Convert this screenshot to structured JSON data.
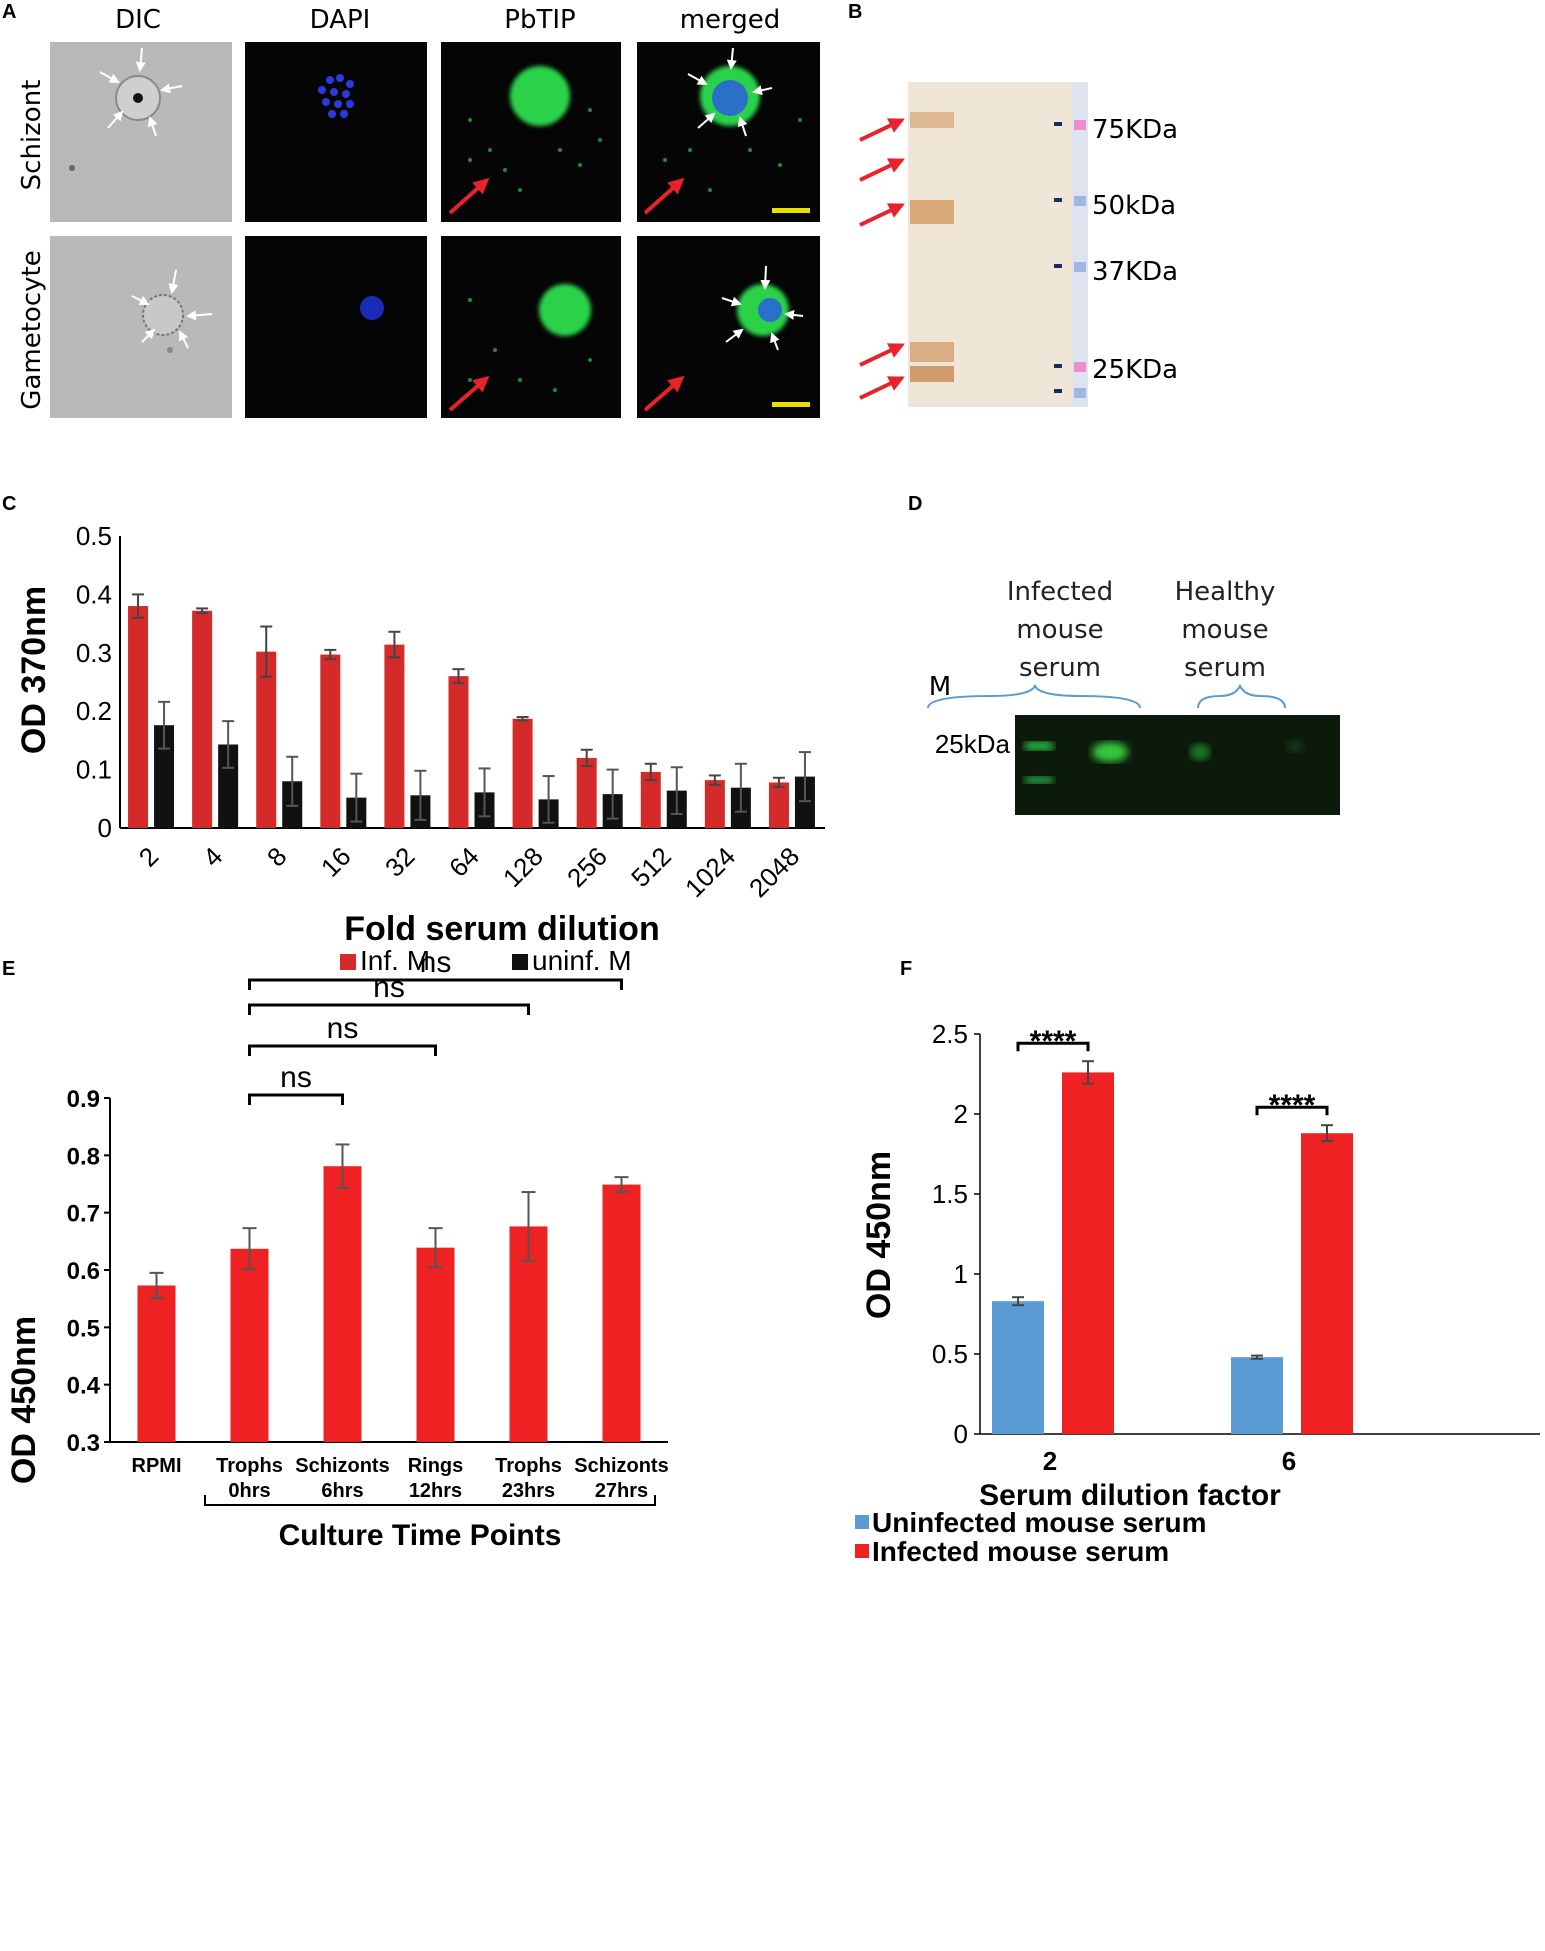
{
  "panels": {
    "A": "A",
    "B": "B",
    "C": "C",
    "D": "D",
    "E": "E",
    "F": "F"
  },
  "panelA": {
    "columns": [
      "DIC",
      "DAPI",
      "PbTIP",
      "merged"
    ],
    "rows": [
      "Schizont",
      "Gametocyte"
    ]
  },
  "panelB": {
    "markers": [
      "75KDa",
      "50kDa",
      "37KDa",
      "25KDa"
    ]
  },
  "panelD": {
    "lane_m": "M",
    "marker": "25kDa",
    "infected": [
      "Infected",
      "mouse",
      "serum"
    ],
    "healthy": [
      "Healthy",
      "mouse",
      "serum"
    ]
  },
  "chart_data": [
    {
      "type": "bar",
      "panel": "C",
      "xlabel": "Fold serum dilution",
      "ylabel": "OD 370nm",
      "ylim": [
        0,
        0.5
      ],
      "yticks": [
        "0",
        "0.1",
        "0.2",
        "0.3",
        "0.4",
        "0.5"
      ],
      "categories": [
        "2",
        "4",
        "8",
        "16",
        "32",
        "64",
        "128",
        "256",
        "512",
        "1024",
        "2048"
      ],
      "series": [
        {
          "name": "Inf. M",
          "color": "#d42a2a",
          "values": [
            0.38,
            0.372,
            0.302,
            0.297,
            0.314,
            0.26,
            0.187,
            0.12,
            0.096,
            0.082,
            0.078
          ],
          "errors": [
            0.02,
            0.004,
            0.043,
            0.008,
            0.022,
            0.012,
            0.003,
            0.014,
            0.014,
            0.008,
            0.008
          ]
        },
        {
          "name": "uninf. M",
          "color": "#111111",
          "values": [
            0.176,
            0.143,
            0.08,
            0.052,
            0.056,
            0.061,
            0.049,
            0.058,
            0.064,
            0.069,
            0.088
          ],
          "errors": [
            0.04,
            0.04,
            0.042,
            0.041,
            0.042,
            0.041,
            0.04,
            0.042,
            0.04,
            0.041,
            0.042
          ]
        }
      ]
    },
    {
      "type": "bar",
      "panel": "E",
      "xlabel": "Culture Time Points",
      "ylabel": "OD 450nm",
      "ylim": [
        0.3,
        0.9
      ],
      "yticks": [
        "0.3",
        "0.4",
        "0.5",
        "0.6",
        "0.7",
        "0.8",
        "0.9"
      ],
      "categories": [
        [
          "RPMI",
          ""
        ],
        [
          "Trophs",
          "0hrs"
        ],
        [
          "Schizonts",
          "6hrs"
        ],
        [
          "Rings",
          "12hrs"
        ],
        [
          "Trophs",
          "23hrs"
        ],
        [
          "Schizonts",
          "27hrs"
        ]
      ],
      "color": "#ee2222",
      "values": [
        0.573,
        0.637,
        0.781,
        0.639,
        0.676,
        0.749
      ],
      "errors": [
        0.022,
        0.036,
        0.038,
        0.034,
        0.06,
        0.013
      ],
      "annotations": [
        {
          "label": "ns",
          "from": 1,
          "to": 2
        },
        {
          "label": "ns",
          "from": 1,
          "to": 3
        },
        {
          "label": "ns",
          "from": 1,
          "to": 4
        },
        {
          "label": "ns",
          "from": 1,
          "to": 5
        }
      ]
    },
    {
      "type": "bar",
      "panel": "F",
      "xlabel": "Serum dilution factor",
      "ylabel": "OD 450nm",
      "ylim": [
        0,
        2.5
      ],
      "yticks": [
        "0",
        "0.5",
        "1",
        "1.5",
        "2",
        "2.5"
      ],
      "categories": [
        "2",
        "6"
      ],
      "series": [
        {
          "name": "Uninfected mouse serum",
          "color": "#5b9bd5",
          "values": [
            0.83,
            0.48
          ],
          "errors": [
            0.025,
            0.01
          ]
        },
        {
          "name": "Infected mouse serum",
          "color": "#ee2222",
          "values": [
            2.26,
            1.88
          ],
          "errors": [
            0.07,
            0.05
          ]
        }
      ],
      "annotations": [
        {
          "label": "****",
          "category": 0
        },
        {
          "label": "****",
          "category": 1
        }
      ]
    }
  ]
}
